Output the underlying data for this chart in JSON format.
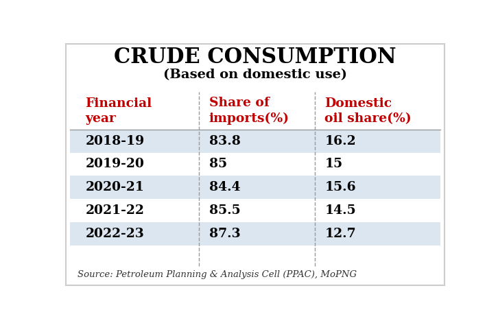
{
  "title": "CRUDE CONSUMPTION",
  "subtitle": "(Based on domestic use)",
  "col_headers": [
    "Financial\nyear",
    "Share of\nimports(%)",
    "Domestic\noil share(%)"
  ],
  "rows": [
    [
      "2018-19",
      "83.8",
      "16.2"
    ],
    [
      "2019-20",
      "85",
      "15"
    ],
    [
      "2020-21",
      "84.4",
      "15.6"
    ],
    [
      "2021-22",
      "85.5",
      "14.5"
    ],
    [
      "2022-23",
      "87.3",
      "12.7"
    ]
  ],
  "source_text": "Source: Petroleum Planning & Analysis Cell (PPAC), MoPNG",
  "bg_color": "#ffffff",
  "row_alt_color": "#dce6f1",
  "row_white_color": "#ffffff",
  "header_text_color": "#c00000",
  "data_text_color": "#000000",
  "title_color": "#000000",
  "subtitle_color": "#000000",
  "source_color": "#333333",
  "divider_color": "#999999",
  "border_color": "#cccccc"
}
